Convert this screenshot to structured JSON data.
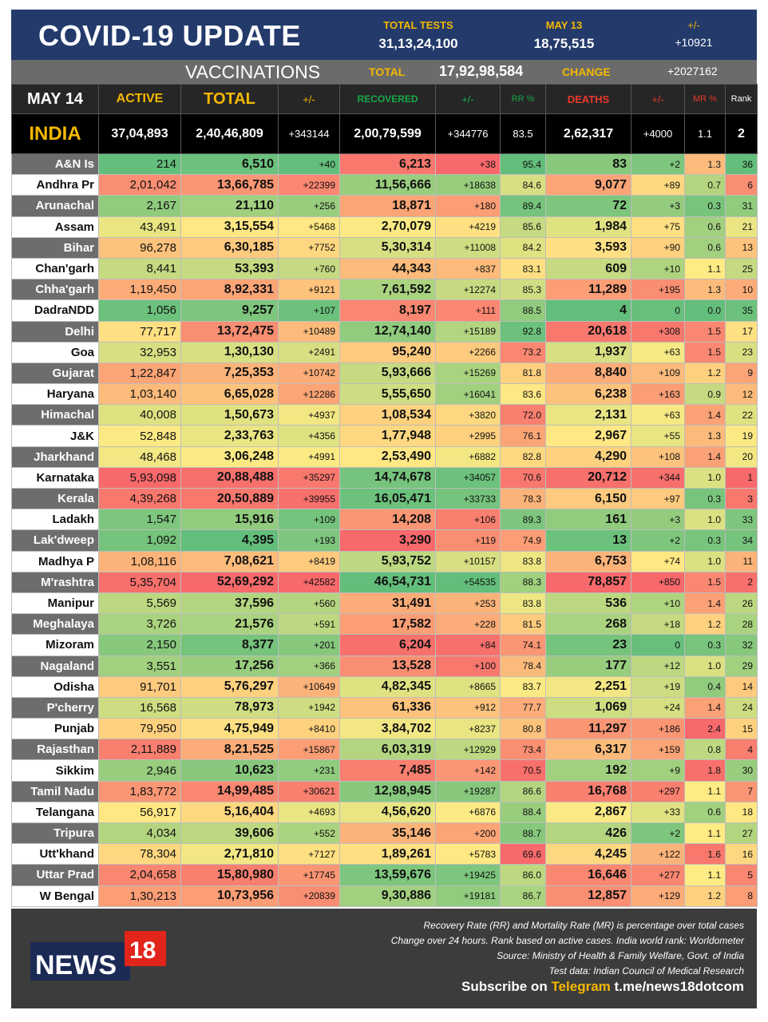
{
  "header": {
    "title": "COVID-19 UPDATE",
    "total_tests_label": "TOTAL TESTS",
    "total_tests": "31,13,24,100",
    "may13_label": "MAY 13",
    "may13_tests": "18,75,515",
    "change_label": "+/-",
    "change_tests": "+10921"
  },
  "vaccinations": {
    "label": "VACCINATIONS",
    "total_label": "TOTAL",
    "total": "17,92,98,584",
    "change_label": "CHANGE",
    "change": "+2027162"
  },
  "columns": [
    "MAY 14",
    "ACTIVE",
    "TOTAL",
    "+/-",
    "RECOVERED",
    "+/-",
    "RR %",
    "DEATHS",
    "+/-",
    "MR %",
    "Rank"
  ],
  "colors": {
    "green": "#63be7b",
    "yellow": "#ffeb84",
    "red": "#f8696b",
    "header_blue": "#233a6b",
    "gold": "#f5b800",
    "rec_green": "#18a84a",
    "death_red": "#e8392a"
  },
  "india": [
    "INDIA",
    "37,04,893",
    "2,40,46,809",
    "+343144",
    "2,00,79,599",
    "+344776",
    "83.5",
    "2,62,317",
    "+4000",
    "1.1",
    "2"
  ],
  "rows": [
    [
      "A&N Is",
      "214",
      "6,510",
      "+40",
      "6,213",
      "+38",
      "95.4",
      "83",
      "+2",
      "1.3",
      "36"
    ],
    [
      "Andhra Pr",
      "2,01,042",
      "13,66,785",
      "+22399",
      "11,56,666",
      "+18638",
      "84.6",
      "9,077",
      "+89",
      "0.7",
      "6"
    ],
    [
      "Arunachal",
      "2,167",
      "21,110",
      "+256",
      "18,871",
      "+180",
      "89.4",
      "72",
      "+3",
      "0.3",
      "31"
    ],
    [
      "Assam",
      "43,491",
      "3,15,554",
      "+5468",
      "2,70,079",
      "+4219",
      "85.6",
      "1,984",
      "+75",
      "0.6",
      "21"
    ],
    [
      "Bihar",
      "96,278",
      "6,30,185",
      "+7752",
      "5,30,314",
      "+11008",
      "84.2",
      "3,593",
      "+90",
      "0.6",
      "13"
    ],
    [
      "Chan'garh",
      "8,441",
      "53,393",
      "+760",
      "44,343",
      "+837",
      "83.1",
      "609",
      "+10",
      "1.1",
      "25"
    ],
    [
      "Chha'garh",
      "1,19,450",
      "8,92,331",
      "+9121",
      "7,61,592",
      "+12274",
      "85.3",
      "11,289",
      "+195",
      "1.3",
      "10"
    ],
    [
      "DadraNDD",
      "1,056",
      "9,257",
      "+107",
      "8,197",
      "+111",
      "88.5",
      "4",
      "0",
      "0.0",
      "35"
    ],
    [
      "Delhi",
      "77,717",
      "13,72,475",
      "+10489",
      "12,74,140",
      "+15189",
      "92.8",
      "20,618",
      "+308",
      "1.5",
      "17"
    ],
    [
      "Goa",
      "32,953",
      "1,30,130",
      "+2491",
      "95,240",
      "+2266",
      "73.2",
      "1,937",
      "+63",
      "1.5",
      "23"
    ],
    [
      "Gujarat",
      "1,22,847",
      "7,25,353",
      "+10742",
      "5,93,666",
      "+15269",
      "81.8",
      "8,840",
      "+109",
      "1.2",
      "9"
    ],
    [
      "Haryana",
      "1,03,140",
      "6,65,028",
      "+12286",
      "5,55,650",
      "+16041",
      "83.6",
      "6,238",
      "+163",
      "0.9",
      "12"
    ],
    [
      "Himachal",
      "40,008",
      "1,50,673",
      "+4937",
      "1,08,534",
      "+3820",
      "72.0",
      "2,131",
      "+63",
      "1.4",
      "22"
    ],
    [
      "J&K",
      "52,848",
      "2,33,763",
      "+4356",
      "1,77,948",
      "+2995",
      "76.1",
      "2,967",
      "+55",
      "1.3",
      "19"
    ],
    [
      "Jharkhand",
      "48,468",
      "3,06,248",
      "+4991",
      "2,53,490",
      "+6882",
      "82.8",
      "4,290",
      "+108",
      "1.4",
      "20"
    ],
    [
      "Karnataka",
      "5,93,098",
      "20,88,488",
      "+35297",
      "14,74,678",
      "+34057",
      "70.6",
      "20,712",
      "+344",
      "1.0",
      "1"
    ],
    [
      "Kerala",
      "4,39,268",
      "20,50,889",
      "+39955",
      "16,05,471",
      "+33733",
      "78.3",
      "6,150",
      "+97",
      "0.3",
      "3"
    ],
    [
      "Ladakh",
      "1,547",
      "15,916",
      "+109",
      "14,208",
      "+106",
      "89.3",
      "161",
      "+3",
      "1.0",
      "33"
    ],
    [
      "Lak'dweep",
      "1,092",
      "4,395",
      "+193",
      "3,290",
      "+119",
      "74.9",
      "13",
      "+2",
      "0.3",
      "34"
    ],
    [
      "Madhya P",
      "1,08,116",
      "7,08,621",
      "+8419",
      "5,93,752",
      "+10157",
      "83.8",
      "6,753",
      "+74",
      "1.0",
      "11"
    ],
    [
      "M'rashtra",
      "5,35,704",
      "52,69,292",
      "+42582",
      "46,54,731",
      "+54535",
      "88.3",
      "78,857",
      "+850",
      "1.5",
      "2"
    ],
    [
      "Manipur",
      "5,569",
      "37,596",
      "+560",
      "31,491",
      "+253",
      "83.8",
      "536",
      "+10",
      "1.4",
      "26"
    ],
    [
      "Meghalaya",
      "3,726",
      "21,576",
      "+591",
      "17,582",
      "+228",
      "81.5",
      "268",
      "+18",
      "1.2",
      "28"
    ],
    [
      "Mizoram",
      "2,150",
      "8,377",
      "+201",
      "6,204",
      "+84",
      "74.1",
      "23",
      "0",
      "0.3",
      "32"
    ],
    [
      "Nagaland",
      "3,551",
      "17,256",
      "+366",
      "13,528",
      "+100",
      "78.4",
      "177",
      "+12",
      "1.0",
      "29"
    ],
    [
      "Odisha",
      "91,701",
      "5,76,297",
      "+10649",
      "4,82,345",
      "+8665",
      "83.7",
      "2,251",
      "+19",
      "0.4",
      "14"
    ],
    [
      "P'cherry",
      "16,568",
      "78,973",
      "+1942",
      "61,336",
      "+912",
      "77.7",
      "1,069",
      "+24",
      "1.4",
      "24"
    ],
    [
      "Punjab",
      "79,950",
      "4,75,949",
      "+8410",
      "3,84,702",
      "+8237",
      "80.8",
      "11,297",
      "+186",
      "2.4",
      "15"
    ],
    [
      "Rajasthan",
      "2,11,889",
      "8,21,525",
      "+15867",
      "6,03,319",
      "+12929",
      "73.4",
      "6,317",
      "+159",
      "0.8",
      "4"
    ],
    [
      "Sikkim",
      "2,946",
      "10,623",
      "+231",
      "7,485",
      "+142",
      "70.5",
      "192",
      "+9",
      "1.8",
      "30"
    ],
    [
      "Tamil Nadu",
      "1,83,772",
      "14,99,485",
      "+30621",
      "12,98,945",
      "+19287",
      "86.6",
      "16,768",
      "+297",
      "1.1",
      "7"
    ],
    [
      "Telangana",
      "56,917",
      "5,16,404",
      "+4693",
      "4,56,620",
      "+6876",
      "88.4",
      "2,867",
      "+33",
      "0.6",
      "18"
    ],
    [
      "Tripura",
      "4,034",
      "39,606",
      "+552",
      "35,146",
      "+200",
      "88.7",
      "426",
      "+2",
      "1.1",
      "27"
    ],
    [
      "Utt'khand",
      "78,304",
      "2,71,810",
      "+7127",
      "1,89,261",
      "+5783",
      "69.6",
      "4,245",
      "+122",
      "1.6",
      "16"
    ],
    [
      "Uttar Prad",
      "2,04,658",
      "15,80,980",
      "+17745",
      "13,59,676",
      "+19425",
      "86.0",
      "16,646",
      "+277",
      "1.1",
      "5"
    ],
    [
      "W Bengal",
      "1,30,213",
      "10,73,956",
      "+20839",
      "9,30,886",
      "+19181",
      "86.7",
      "12,857",
      "+129",
      "1.2",
      "8"
    ]
  ],
  "footer": {
    "notes": [
      "Recovery Rate (RR) and Mortality Rate (MR) is percentage over total cases",
      "Change over 24 hours. Rank based on active cases. India world rank: Worldometer",
      "Source: Ministry of Health & Family Welfare, Govt. of India",
      "Test data: Indian Council of Medical Research"
    ],
    "subscribe_prefix": "Subscribe on",
    "subscribe_brand": "Telegram",
    "subscribe_link": "t.me/news18dotcom",
    "logo_text": "NEWS18"
  }
}
